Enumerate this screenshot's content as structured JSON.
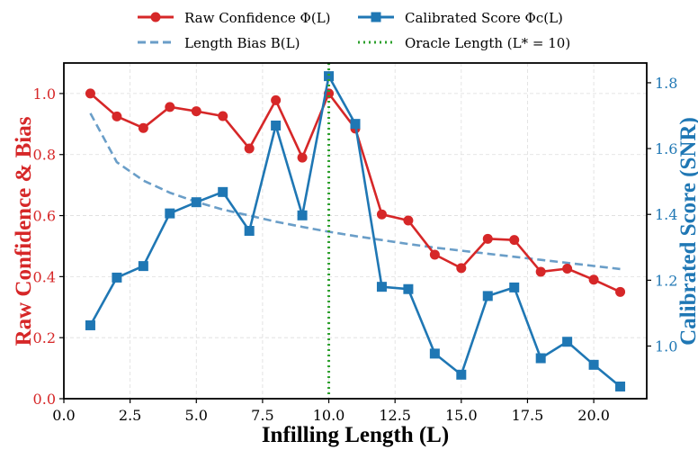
{
  "chart_data": {
    "type": "line",
    "x": [
      1,
      2,
      3,
      4,
      5,
      6,
      7,
      8,
      9,
      10,
      11,
      12,
      13,
      14,
      15,
      16,
      17,
      18,
      19,
      20,
      21
    ],
    "series": [
      {
        "name": "Raw Confidence Φ(L)",
        "axis": "left",
        "color": "#d62728",
        "marker": "circle",
        "values": [
          1.0,
          0.925,
          0.887,
          0.956,
          0.942,
          0.926,
          0.82,
          0.978,
          0.79,
          1.0,
          0.885,
          0.604,
          0.584,
          0.472,
          0.428,
          0.524,
          0.52,
          0.416,
          0.426,
          0.39,
          0.35
        ]
      },
      {
        "name": "Length Bias B(L)",
        "axis": "left",
        "color": "#6a9ec8",
        "style": "dashed",
        "values": [
          0.935,
          0.775,
          0.715,
          0.675,
          0.645,
          0.62,
          0.6,
          0.58,
          0.563,
          0.547,
          0.533,
          0.52,
          0.507,
          0.495,
          0.485,
          0.475,
          0.465,
          0.455,
          0.445,
          0.435,
          0.425
        ]
      },
      {
        "name": "Calibrated Score Φ_c(L)",
        "axis": "right",
        "color": "#1f77b4",
        "marker": "square",
        "values": [
          1.063,
          1.208,
          1.243,
          1.403,
          1.437,
          1.468,
          1.35,
          1.67,
          1.397,
          1.82,
          1.675,
          1.18,
          1.173,
          0.977,
          0.913,
          1.152,
          1.178,
          0.963,
          1.013,
          0.943,
          0.877
        ]
      }
    ],
    "oracle": {
      "name": "Oracle Length",
      "x": 10,
      "color": "#2ca02c"
    },
    "xlabel": "Infilling Length (L)",
    "ylabel_left": "Raw Confidence & Bias",
    "ylabel_right": "Calibrated Score (SNR)",
    "xlim": [
      0.0,
      22.0
    ],
    "ylim_left": [
      0.0,
      1.1
    ],
    "ylim_right": [
      0.84,
      1.86
    ],
    "x_ticks": [
      "0.0",
      "2.5",
      "5.0",
      "7.5",
      "10.0",
      "12.5",
      "15.0",
      "17.5",
      "20.0"
    ],
    "y_left_ticks": [
      "0.0",
      "0.2",
      "0.4",
      "0.6",
      "0.8",
      "1.0"
    ],
    "y_right_ticks": [
      "1.0",
      "1.2",
      "1.4",
      "1.6",
      "1.8"
    ],
    "grid": true,
    "legend_placement": "top-center",
    "colors": {
      "left_axis": "#d62728",
      "right_axis": "#1f77b4"
    },
    "legend": {
      "raw_label": "Raw Confidence Φ(L)",
      "cal_label": "Calibrated Score Φc(L)",
      "bias_label": "Length Bias B(L)",
      "oracle_label": "Oracle Length (L* = 10)"
    }
  }
}
